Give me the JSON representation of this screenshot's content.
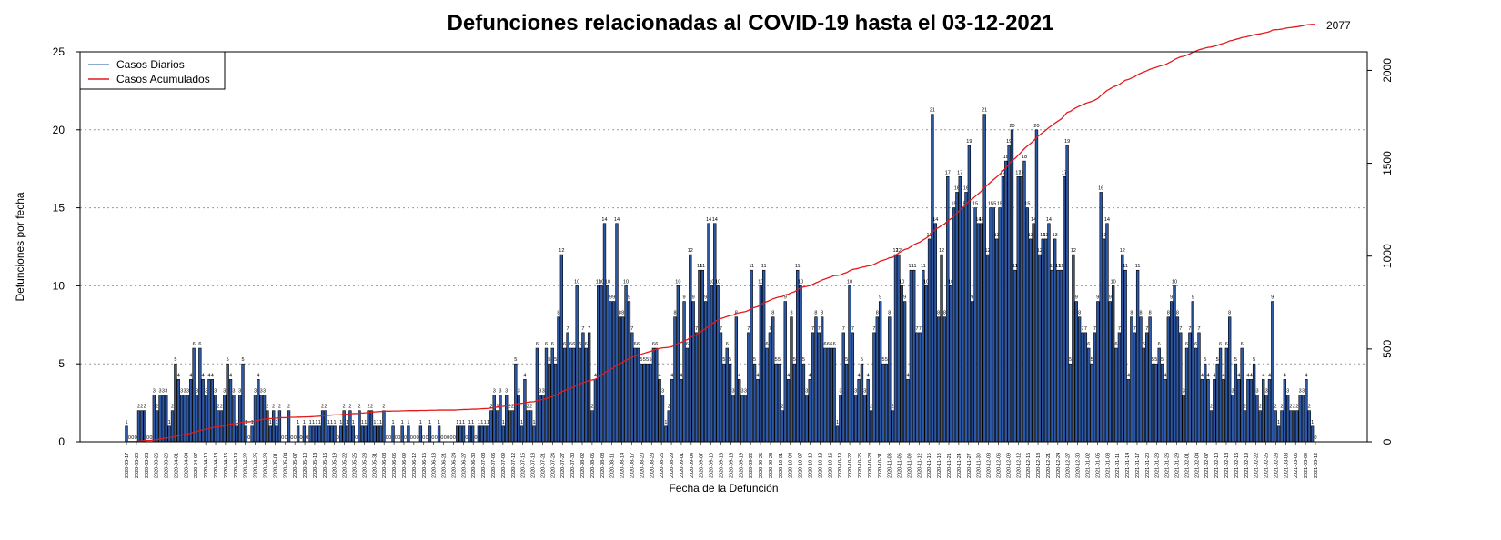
{
  "chart_data": {
    "type": "bar",
    "title": "Defunciones relacionadas al COVID-19 hasta el 03-12-2021",
    "xlabel": "Fecha de la Defunción",
    "ylabel": "Defunciones por fecha",
    "ylim": [
      0,
      25
    ],
    "y2lim": [
      0,
      2100
    ],
    "yticks": [
      0,
      5,
      10,
      15,
      20,
      25
    ],
    "y2ticks": [
      0,
      500,
      1000,
      1500,
      2000
    ],
    "grid": "horizontal dotted",
    "legend": {
      "position": "top-left",
      "entries": [
        {
          "label": "Casos Diarios",
          "color": "#6c8ebf"
        },
        {
          "label": "Casos Acumulados",
          "color": "#e31a1c"
        }
      ]
    },
    "final_cumulative_label": "2077",
    "bar_color": "#2d58a6",
    "line_color": "#e31a1c",
    "categories": [
      "2020-03-17",
      "2020-03-20",
      "2020-03-23",
      "2020-03-26",
      "2020-03-29",
      "2020-04-01",
      "2020-04-04",
      "2020-04-07",
      "2020-04-10",
      "2020-04-13",
      "2020-04-16",
      "2020-04-19",
      "2020-04-22",
      "2020-04-25",
      "2020-04-28",
      "2020-05-01",
      "2020-05-04",
      "2020-05-07",
      "2020-05-10",
      "2020-05-13",
      "2020-05-16",
      "2020-05-19",
      "2020-05-22",
      "2020-05-25",
      "2020-05-28",
      "2020-05-31",
      "2020-06-03",
      "2020-06-06",
      "2020-06-09",
      "2020-06-12",
      "2020-06-15",
      "2020-06-18",
      "2020-06-21",
      "2020-06-24",
      "2020-06-27",
      "2020-06-30",
      "2020-07-03",
      "2020-07-06",
      "2020-07-09",
      "2020-07-12",
      "2020-07-15",
      "2020-07-18",
      "2020-07-21",
      "2020-07-24",
      "2020-07-27",
      "2020-07-30",
      "2020-08-02",
      "2020-08-05",
      "2020-08-08",
      "2020-08-11",
      "2020-08-14",
      "2020-08-17",
      "2020-08-20",
      "2020-08-23",
      "2020-08-26",
      "2020-08-29",
      "2020-09-01",
      "2020-09-04",
      "2020-09-07",
      "2020-09-10",
      "2020-09-13",
      "2020-09-16",
      "2020-09-19",
      "2020-09-22",
      "2020-09-25",
      "2020-09-28",
      "2020-10-01",
      "2020-10-04",
      "2020-10-07",
      "2020-10-10",
      "2020-10-13",
      "2020-10-16",
      "2020-10-19",
      "2020-10-22",
      "2020-10-25",
      "2020-10-28",
      "2020-10-31",
      "2020-11-03",
      "2020-11-06",
      "2020-11-09",
      "2020-11-12",
      "2020-11-15",
      "2020-11-18",
      "2020-11-21",
      "2020-11-24",
      "2020-11-27",
      "2020-11-30",
      "2020-12-03",
      "2020-12-06",
      "2020-12-09",
      "2020-12-12",
      "2020-12-15",
      "2020-12-18",
      "2020-12-21",
      "2020-12-24",
      "2020-12-27",
      "2020-12-30",
      "2021-01-02",
      "2021-01-05",
      "2021-01-08",
      "2021-01-11",
      "2021-01-14",
      "2021-01-17",
      "2021-01-20",
      "2021-01-23",
      "2021-01-26",
      "2021-01-29",
      "2021-02-01",
      "2021-02-04",
      "2021-02-07",
      "2021-02-10",
      "2021-02-13",
      "2021-02-16",
      "2021-02-19",
      "2021-02-22",
      "2021-02-25",
      "2021-02-28",
      "2021-03-03",
      "2021-03-06",
      "2021-03-09",
      "2021-03-12"
    ],
    "daily_values": [
      1,
      0,
      0,
      0,
      2,
      2,
      2,
      0,
      0,
      3,
      2,
      3,
      3,
      3,
      1,
      2,
      5,
      4,
      3,
      3,
      3,
      4,
      6,
      3,
      6,
      4,
      3,
      4,
      4,
      3,
      2,
      2,
      3,
      5,
      4,
      3,
      1,
      3,
      5,
      1,
      0,
      1,
      3,
      4,
      3,
      3,
      2,
      1,
      2,
      1,
      2,
      0,
      0,
      2,
      0,
      0,
      1,
      0,
      1,
      0,
      1,
      1,
      1,
      1,
      2,
      2,
      1,
      1,
      1,
      0,
      1,
      2,
      1,
      2,
      1,
      0,
      2,
      1,
      1,
      2,
      2,
      1,
      1,
      1,
      2,
      0,
      0,
      1,
      0,
      0,
      1,
      0,
      1,
      0,
      0,
      0,
      1,
      0,
      0,
      1,
      0,
      0,
      1,
      0,
      0,
      0,
      0,
      0,
      1,
      1,
      1,
      0,
      1,
      1,
      0,
      1,
      1,
      1,
      1,
      2,
      3,
      2,
      3,
      1,
      3,
      2,
      2,
      5,
      3,
      1,
      4,
      2,
      2,
      1,
      6,
      3,
      3,
      6,
      5,
      6,
      5,
      8,
      12,
      6,
      7,
      6,
      6,
      10,
      6,
      7,
      6,
      7,
      2,
      4,
      10,
      10,
      14,
      10,
      9,
      9,
      14,
      8,
      8,
      10,
      9,
      7,
      6,
      6,
      5,
      5,
      5,
      5,
      6,
      6,
      4,
      3,
      1,
      2,
      4,
      8,
      10,
      4,
      9,
      6,
      12,
      9,
      7,
      11,
      11,
      9,
      14,
      10,
      14,
      10,
      7,
      5,
      6,
      5,
      3,
      8,
      4,
      3,
      3,
      7,
      11,
      5,
      4,
      10,
      11,
      6,
      7,
      8,
      5,
      5,
      2,
      9,
      4,
      8,
      5,
      11,
      10,
      5,
      3,
      4,
      7,
      8,
      7,
      8,
      6,
      6,
      6,
      6,
      1,
      3,
      7,
      5,
      10,
      7,
      3,
      4,
      5,
      3,
      4,
      2,
      7,
      8,
      9,
      5,
      5,
      8,
      2,
      12,
      12,
      10,
      9,
      4,
      11,
      11,
      7,
      7,
      11,
      10,
      13,
      21,
      14,
      8,
      12,
      8,
      17,
      10,
      15,
      16,
      17,
      15,
      16,
      19,
      9,
      15,
      14,
      14,
      21,
      12,
      15,
      15,
      13,
      15,
      17,
      18,
      19,
      20,
      11,
      17,
      17,
      18,
      15,
      13,
      14,
      20,
      12,
      13,
      13,
      14,
      11,
      13,
      11,
      11,
      17,
      19,
      5,
      12,
      9,
      8,
      7,
      7,
      6,
      5,
      7,
      9,
      16,
      13,
      14,
      9,
      10,
      6,
      7,
      12,
      11,
      4,
      8,
      7,
      11,
      8,
      6,
      7,
      8,
      5,
      5,
      6,
      5,
      4,
      8,
      9,
      10,
      8,
      7,
      3,
      6,
      7,
      9,
      6,
      7,
      4,
      5,
      4,
      2,
      4,
      5,
      6,
      4,
      6,
      8,
      3,
      5,
      4,
      6,
      2,
      4,
      4,
      5,
      3,
      2,
      4,
      3,
      4,
      9,
      2,
      1,
      2,
      4,
      3,
      2,
      2,
      2,
      3,
      3,
      4,
      2,
      1,
      0
    ]
  }
}
